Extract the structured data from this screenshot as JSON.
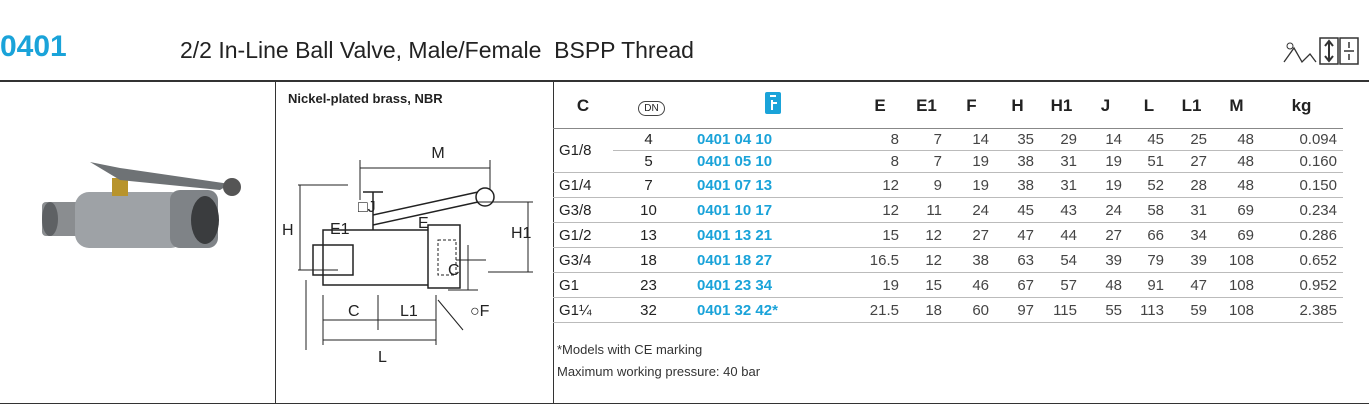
{
  "header": {
    "code": "0401",
    "title": "2/2 In-Line Ball Valve, Male/Female  BSPP Thread"
  },
  "material": "Nickel-plated brass, NBR",
  "diagram": {
    "M": "M",
    "J": "□J",
    "H": "H",
    "E1": "E1",
    "E": "E",
    "H1": "H1",
    "C_side": "C",
    "C_bottom": "C",
    "L1": "L1",
    "F": "○F",
    "L": "L"
  },
  "table": {
    "columns": [
      "C",
      "DN",
      "E",
      "E1",
      "F",
      "H",
      "H1",
      "J",
      "L",
      "L1",
      "M",
      "kg"
    ],
    "groups": [
      {
        "C": "G1/8",
        "rows": [
          [
            "4",
            "0401 04 10",
            "8",
            "7",
            "14",
            "35",
            "29",
            "14",
            "45",
            "25",
            "48",
            "0.094"
          ],
          [
            "5",
            "0401 05 10",
            "8",
            "7",
            "19",
            "38",
            "31",
            "19",
            "51",
            "27",
            "48",
            "0.160"
          ]
        ]
      },
      {
        "C": "G1/4",
        "rows": [
          [
            "7",
            "0401 07 13",
            "12",
            "9",
            "19",
            "38",
            "31",
            "19",
            "52",
            "28",
            "48",
            "0.150"
          ]
        ]
      },
      {
        "C": "G3/8",
        "rows": [
          [
            "10",
            "0401 10 17",
            "12",
            "11",
            "24",
            "45",
            "43",
            "24",
            "58",
            "31",
            "69",
            "0.234"
          ]
        ]
      },
      {
        "C": "G1/2",
        "rows": [
          [
            "13",
            "0401 13 21",
            "15",
            "12",
            "27",
            "47",
            "44",
            "27",
            "66",
            "34",
            "69",
            "0.286"
          ]
        ]
      },
      {
        "C": "G3/4",
        "rows": [
          [
            "18",
            "0401 18 27",
            "16.5",
            "12",
            "38",
            "63",
            "54",
            "39",
            "79",
            "39",
            "108",
            "0.652"
          ]
        ]
      },
      {
        "C": "G1",
        "rows": [
          [
            "23",
            "0401 23 34",
            "19",
            "15",
            "46",
            "67",
            "57",
            "48",
            "91",
            "47",
            "108",
            "0.952"
          ]
        ]
      },
      {
        "C": "G1¼",
        "rows": [
          [
            "32",
            "0401 32 42*",
            "21.5",
            "18",
            "60",
            "97",
            "115",
            "55",
            "113",
            "59",
            "108",
            "2.385"
          ]
        ]
      }
    ]
  },
  "notes": [
    "*Models with CE marking",
    "Maximum working pressure: 40 bar"
  ]
}
